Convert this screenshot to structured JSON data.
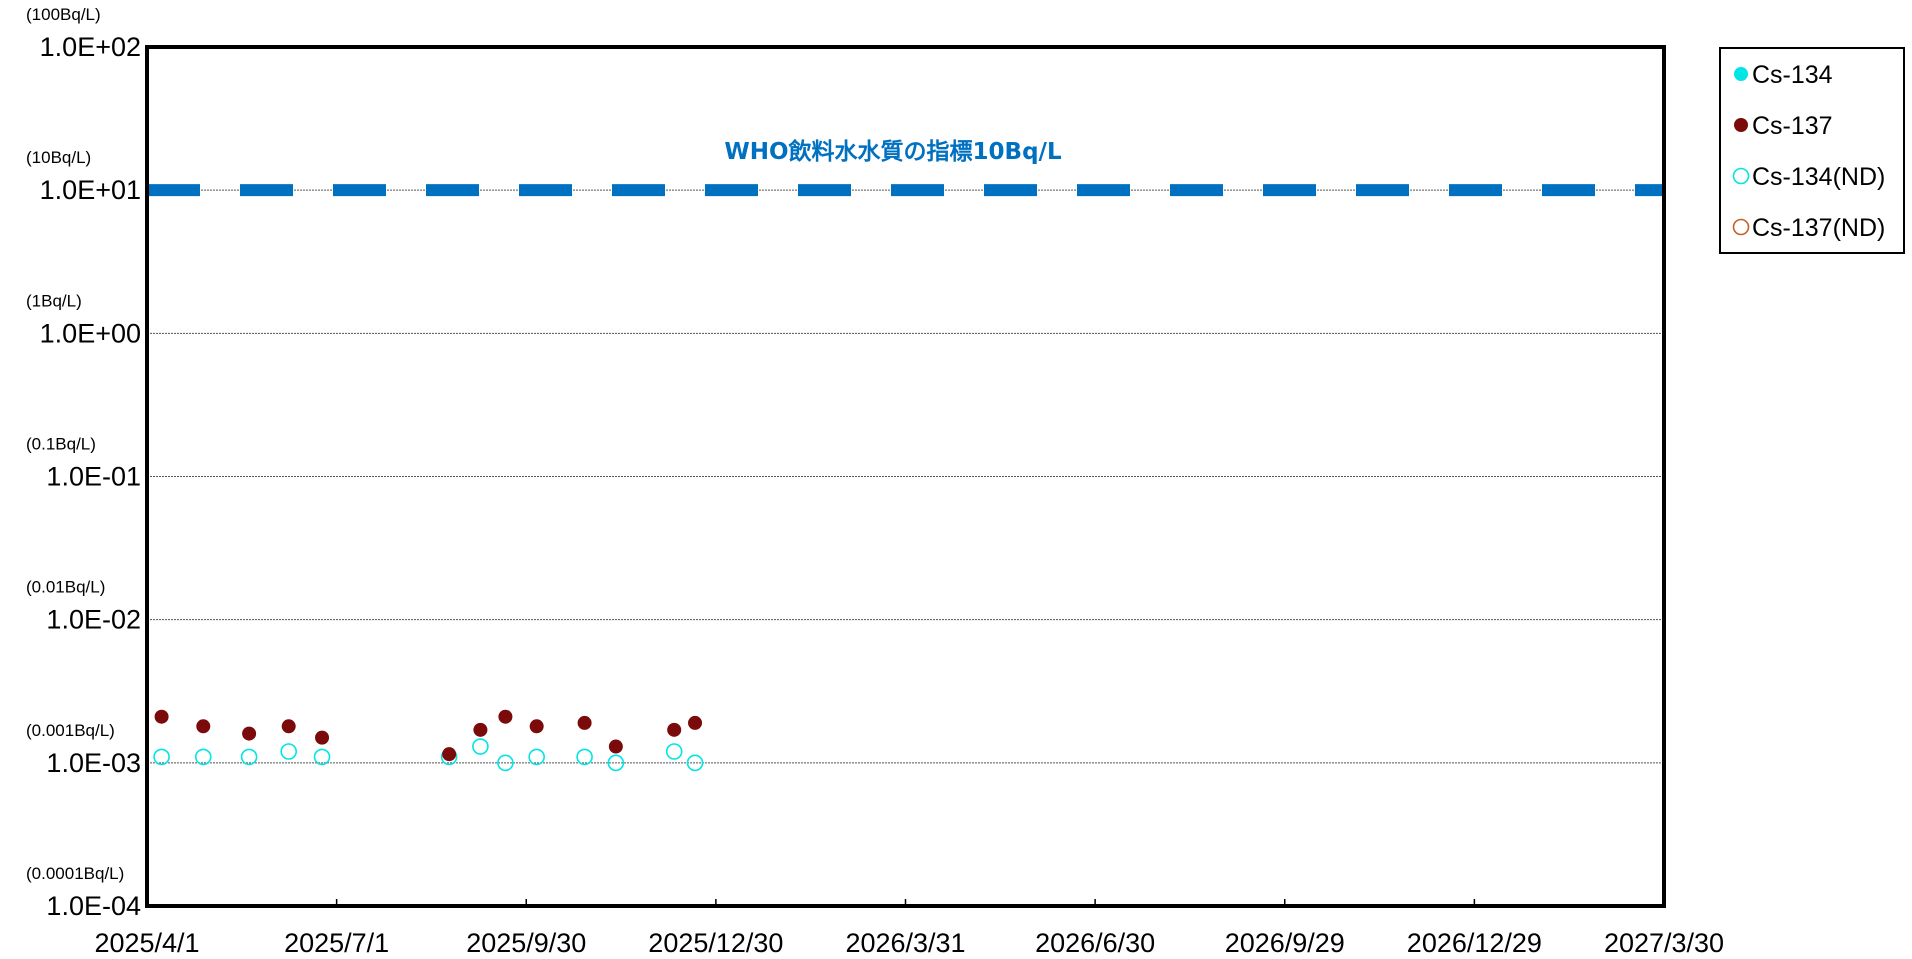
{
  "chart_data": {
    "type": "scatter",
    "x_axis": {
      "type": "date",
      "min": "2025-04-01",
      "max": "2027-03-30",
      "tick_dates": [
        "2025-04-01",
        "2025-07-01",
        "2025-09-30",
        "2025-12-30",
        "2026-03-31",
        "2026-06-30",
        "2026-09-29",
        "2026-12-29",
        "2027-03-30"
      ],
      "tick_labels": [
        "2025/4/1",
        "2025/7/1",
        "2025/9/30",
        "2025/12/30",
        "2026/3/31",
        "2026/6/30",
        "2026/9/29",
        "2026/12/29",
        "2027/3/30"
      ]
    },
    "y_axis": {
      "scale": "log",
      "ylim": [
        0.0001,
        100
      ],
      "ticks": [
        {
          "value": 0.0001,
          "label": "1.0E-04",
          "unit": "(0.0001Bq/L)"
        },
        {
          "value": 0.001,
          "label": "1.0E-03",
          "unit": "(0.001Bq/L)"
        },
        {
          "value": 0.01,
          "label": "1.0E-02",
          "unit": "(0.01Bq/L)"
        },
        {
          "value": 0.1,
          "label": "1.0E-01",
          "unit": "(0.1Bq/L)"
        },
        {
          "value": 1,
          "label": "1.0E+00",
          "unit": "(1Bq/L)"
        },
        {
          "value": 10,
          "label": "1.0E+01",
          "unit": "(10Bq/L)"
        },
        {
          "value": 100,
          "label": "1.0E+02",
          "unit": "(100Bq/L)"
        }
      ],
      "grid": true
    },
    "reference_line": {
      "value": 10,
      "label": "WHO飲料水水質の指標10Bq/L",
      "color": "#0070C0",
      "style": "dashed"
    },
    "legend_position": "right-top",
    "series": [
      {
        "name": "Cs-134",
        "marker": "filled-circle",
        "color": "#00E5E5",
        "points": []
      },
      {
        "name": "Cs-137",
        "marker": "filled-circle",
        "color": "#7B0A0A",
        "points": [
          {
            "x": "2025-04-08",
            "y": 0.0021
          },
          {
            "x": "2025-04-28",
            "y": 0.0018
          },
          {
            "x": "2025-05-20",
            "y": 0.0016
          },
          {
            "x": "2025-06-08",
            "y": 0.0018
          },
          {
            "x": "2025-06-24",
            "y": 0.0015
          },
          {
            "x": "2025-08-24",
            "y": 0.00115
          },
          {
            "x": "2025-09-08",
            "y": 0.0017
          },
          {
            "x": "2025-09-20",
            "y": 0.0021
          },
          {
            "x": "2025-10-05",
            "y": 0.0018
          },
          {
            "x": "2025-10-28",
            "y": 0.0019
          },
          {
            "x": "2025-11-12",
            "y": 0.0013
          },
          {
            "x": "2025-12-10",
            "y": 0.0017
          },
          {
            "x": "2025-12-20",
            "y": 0.0019
          }
        ]
      },
      {
        "name": "Cs-134(ND)",
        "marker": "open-circle",
        "color": "#00E5E5",
        "points": [
          {
            "x": "2025-04-08",
            "y": 0.0011
          },
          {
            "x": "2025-04-28",
            "y": 0.0011
          },
          {
            "x": "2025-05-20",
            "y": 0.0011
          },
          {
            "x": "2025-06-08",
            "y": 0.0012
          },
          {
            "x": "2025-06-24",
            "y": 0.0011
          },
          {
            "x": "2025-08-24",
            "y": 0.0011
          },
          {
            "x": "2025-09-08",
            "y": 0.0013
          },
          {
            "x": "2025-09-20",
            "y": 0.001
          },
          {
            "x": "2025-10-05",
            "y": 0.0011
          },
          {
            "x": "2025-10-28",
            "y": 0.0011
          },
          {
            "x": "2025-11-12",
            "y": 0.001
          },
          {
            "x": "2025-12-10",
            "y": 0.0012
          },
          {
            "x": "2025-12-20",
            "y": 0.001
          }
        ]
      },
      {
        "name": "Cs-137(ND)",
        "marker": "open-circle",
        "color": "#C0622A",
        "points": []
      }
    ]
  }
}
